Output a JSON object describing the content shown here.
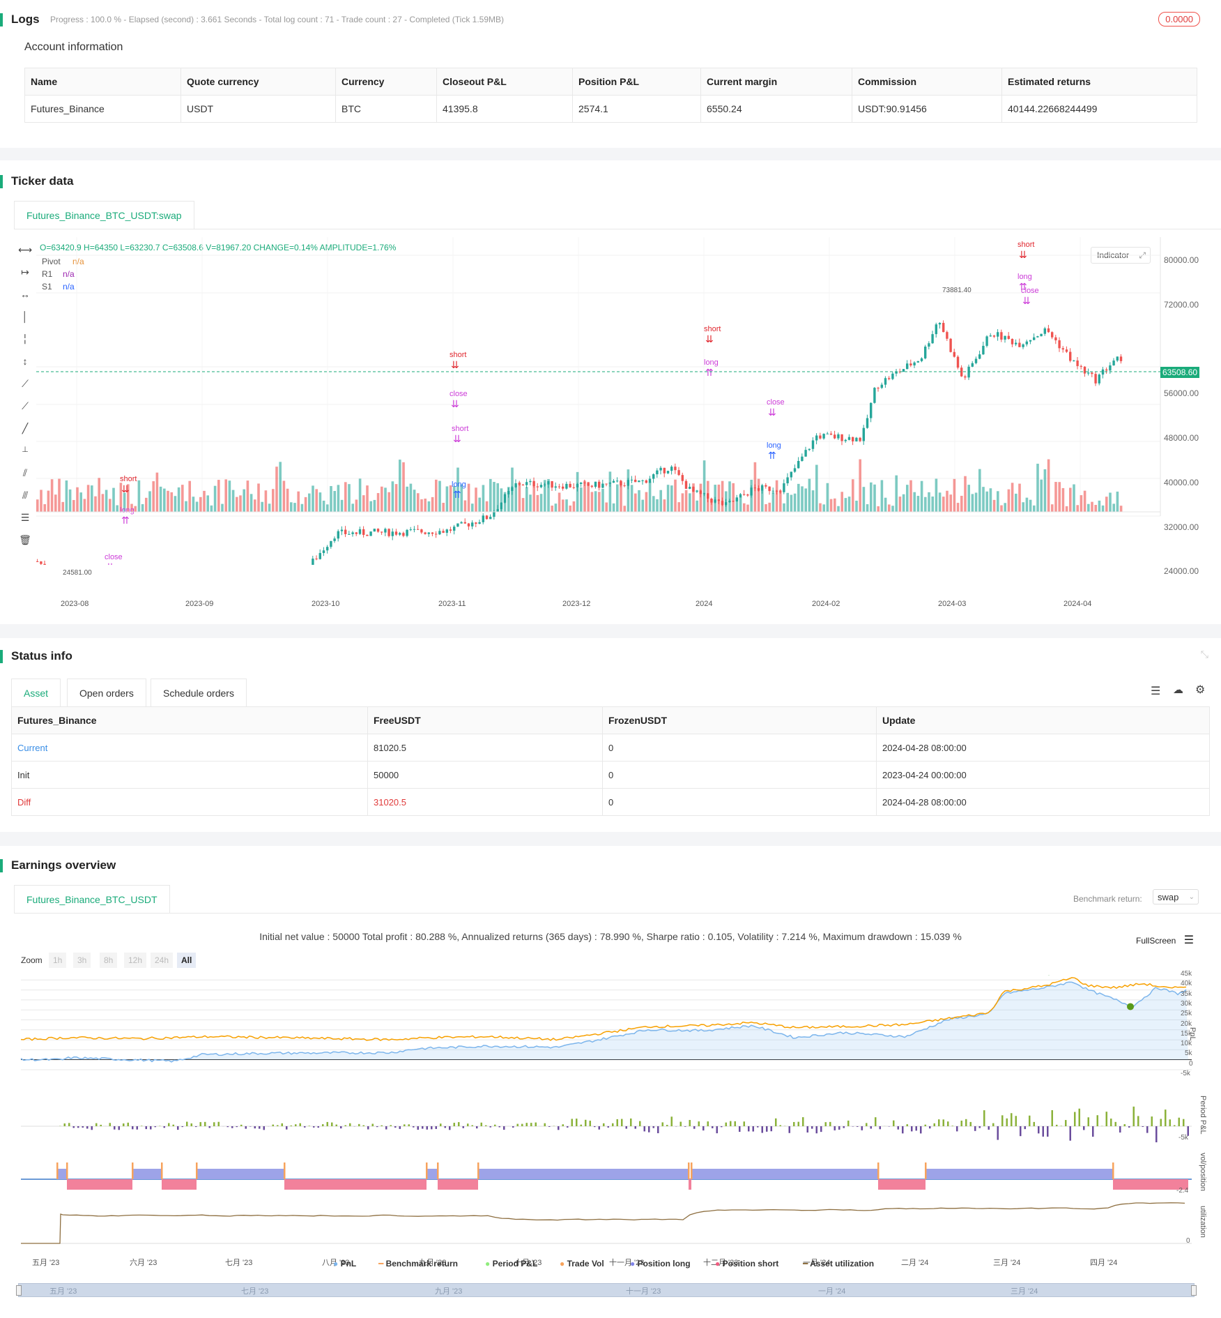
{
  "logs": {
    "title": "Logs",
    "status": "Progress : 100.0 % - Elapsed (second) : 3.661 Seconds - Total log count : 71 - Trade count : 27 - Completed (Tick 1.59MB)",
    "badge": "0.0000"
  },
  "account": {
    "title": "Account information",
    "headers": [
      "Name",
      "Quote currency",
      "Currency",
      "Closeout P&L",
      "Position P&L",
      "Current margin",
      "Commission",
      "Estimated returns"
    ],
    "row": [
      "Futures_Binance",
      "USDT",
      "BTC",
      "41395.8",
      "2574.1",
      "6550.24",
      "USDT:90.91456",
      "40144.22668244499"
    ]
  },
  "ticker": {
    "title": "Ticker data",
    "tab": "Futures_Binance_BTC_USDT:swap",
    "ohlc": "O=63420.9 H=64350 L=63230.7 C=63508.6 V=81967.20 CHANGE=0.14% AMPLITUDE=1.76%",
    "indicators": [
      {
        "name": "Pivot",
        "value": "n/a",
        "color": "#e69138"
      },
      {
        "name": "R1",
        "value": "n/a",
        "color": "#9c27b0"
      },
      {
        "name": "S1",
        "value": "n/a",
        "color": "#2962ff"
      }
    ],
    "indicator_button": "Indicator",
    "price_label": "63508.60",
    "high_label": "73881.40",
    "low_label": "24581.00",
    "y_ticks": [
      "80000.00",
      "72000.00",
      "56000.00",
      "48000.00",
      "40000.00",
      "32000.00",
      "24000.00"
    ],
    "x_ticks": [
      "2023-08",
      "2023-09",
      "2023-10",
      "2023-11",
      "2023-12",
      "2024",
      "2024-02",
      "2024-03",
      "2024-04"
    ],
    "signals": [
      "short",
      "long",
      "close",
      "1"
    ]
  },
  "status": {
    "title": "Status info",
    "tabs": [
      "Asset",
      "Open orders",
      "Schedule orders"
    ],
    "headers": [
      "Futures_Binance",
      "FreeUSDT",
      "FrozenUSDT",
      "Update"
    ],
    "rows": [
      {
        "name": "Current",
        "free": "81020.5",
        "frozen": "0",
        "update": "2024-04-28 08:00:00"
      },
      {
        "name": "Init",
        "free": "50000",
        "frozen": "0",
        "update": "2023-04-24 00:00:00"
      },
      {
        "name": "Diff",
        "free": "31020.5",
        "frozen": "0",
        "update": "2024-04-28 08:00:00"
      }
    ]
  },
  "earnings": {
    "title": "Earnings overview",
    "tab": "Futures_Binance_BTC_USDT",
    "benchmark_label": "Benchmark return:",
    "benchmark_value": "swap",
    "summary": "Initial net value : 50000 Total profit : 80.288 %, Annualized returns (365 days) : 78.990 %, Sharpe ratio : 0.105, Volatility : 7.214 %, Maximum drawdown : 15.039 %",
    "fullscreen": "FullScreen",
    "zoom_label": "Zoom",
    "zoom_buttons": [
      "1h",
      "3h",
      "8h",
      "12h",
      "24h",
      "All"
    ],
    "pnl_ticks": [
      "45k",
      "40k",
      "35k",
      "30k",
      "25k",
      "20k",
      "15k",
      "10k",
      "5k",
      "0",
      "-5k"
    ],
    "period_tick": "-5k",
    "position_tick": "-2.4",
    "util_tick": "0",
    "axis_titles": [
      "PnL",
      "Period P&L",
      "vol/position",
      "utilization"
    ],
    "months": [
      "五月 '23",
      "六月 '23",
      "七月 '23",
      "八月 '23",
      "九月 '23",
      "十月 '23",
      "十一月 '23",
      "十二月 '23",
      "一月 '24",
      "二月 '24",
      "三月 '24",
      "四月 '24"
    ],
    "legend": [
      {
        "label": "PnL",
        "color": "#7cb5ec"
      },
      {
        "label": "Benchmark return",
        "color": "#f7a35c"
      },
      {
        "label": "Period P&L",
        "color": "#90ed7d"
      },
      {
        "label": "Trade Vol",
        "color": "#f7a35c"
      },
      {
        "label": "Position long",
        "color": "#8085e9"
      },
      {
        "label": "Position short",
        "color": "#f15c80"
      },
      {
        "label": "Asset utilization",
        "color": "#8d6e3f"
      }
    ],
    "navigator_months": [
      "五月 '23",
      "七月 '23",
      "九月 '23",
      "十一月 '23",
      "一月 '24",
      "三月 '24"
    ]
  }
}
